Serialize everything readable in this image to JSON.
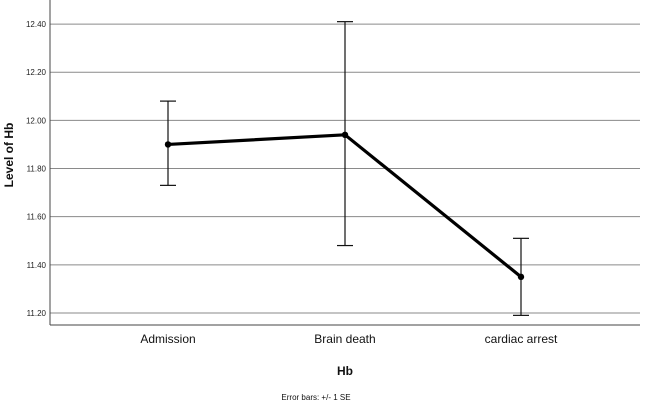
{
  "chart_data": {
    "type": "line",
    "xlabel": "Hb",
    "ylabel": "Level of Hb",
    "categories": [
      "Admission",
      "Brain death",
      "cardiac arrest"
    ],
    "ylim": [
      11.15,
      12.5
    ],
    "yticks": [
      "11.20",
      "11.40",
      "11.60",
      "11.80",
      "12.00",
      "12.20",
      "12.40"
    ],
    "grid": true,
    "series": [
      {
        "values": [
          11.9,
          11.94,
          11.35
        ],
        "error_low": [
          11.73,
          11.48,
          11.19
        ],
        "error_high": [
          12.08,
          12.41,
          11.51
        ]
      }
    ],
    "footnote": "Error bars: +/- 1 SE"
  }
}
